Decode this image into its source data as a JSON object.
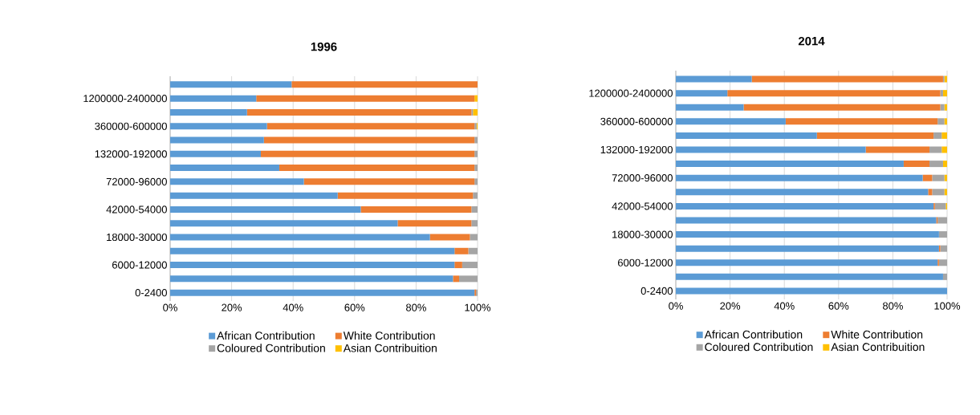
{
  "chart_data": [
    {
      "type": "bar",
      "orientation": "horizontal",
      "stacked": true,
      "title": "1996",
      "categories": [
        null,
        "1200000-2400000",
        null,
        "360000-600000",
        null,
        "132000-192000",
        null,
        "72000-96000",
        null,
        "42000-54000",
        null,
        "18000-30000",
        null,
        "6000-12000",
        null,
        "0-2400"
      ],
      "series": [
        {
          "name": "African Contribution",
          "color": "#5b9bd5",
          "values": [
            39.5,
            28,
            25,
            31.5,
            30.5,
            29.5,
            35.5,
            43.5,
            54.5,
            62,
            74,
            84.5,
            92.5,
            92.5,
            92,
            99
          ]
        },
        {
          "name": "White Contribution",
          "color": "#ed7d31",
          "values": [
            60.5,
            71,
            73,
            67.5,
            68.5,
            69.5,
            63.5,
            55.5,
            44,
            36,
            24,
            13,
            4.5,
            2.5,
            2,
            0.5
          ]
        },
        {
          "name": "Coloured Contribution",
          "color": "#a5a5a5",
          "values": [
            0,
            0,
            0.5,
            0.7,
            1,
            1,
            1,
            1,
            1.5,
            2,
            2,
            2.5,
            3,
            5,
            6,
            0.5
          ]
        },
        {
          "name": "Asian Contribuition",
          "color": "#ffc000",
          "values": [
            0,
            1,
            1.5,
            0.3,
            0,
            0,
            0,
            0,
            0,
            0,
            0,
            0,
            0,
            0,
            0,
            0
          ]
        }
      ],
      "xlim": [
        0,
        100
      ],
      "xticks": [
        {
          "value": 0,
          "label": "0%"
        },
        {
          "value": 20,
          "label": "20%"
        },
        {
          "value": 40,
          "label": "40%"
        },
        {
          "value": 60,
          "label": "60%"
        },
        {
          "value": 80,
          "label": "80%"
        },
        {
          "value": 100,
          "label": "100%"
        }
      ],
      "grid": "x",
      "legend": "bottom"
    },
    {
      "type": "bar",
      "orientation": "horizontal",
      "stacked": true,
      "title": "2014",
      "categories": [
        null,
        "1200000-2400000",
        null,
        "360000-600000",
        null,
        "132000-192000",
        null,
        "72000-96000",
        null,
        "42000-54000",
        null,
        "18000-30000",
        null,
        "6000-12000",
        null,
        "0-2400"
      ],
      "series": [
        {
          "name": "African Contribution",
          "color": "#5b9bd5",
          "values": [
            28,
            19,
            25,
            40.5,
            52,
            70,
            84,
            91,
            93,
            95,
            96,
            97,
            97,
            96.5,
            98.5,
            100
          ]
        },
        {
          "name": "White Contribution",
          "color": "#ed7d31",
          "values": [
            70.5,
            78.5,
            72.5,
            56,
            43,
            23.5,
            9.5,
            3.5,
            1.5,
            0.5,
            0.5,
            0,
            0.5,
            0.5,
            0,
            0
          ]
        },
        {
          "name": "Coloured Contribution",
          "color": "#a5a5a5",
          "values": [
            0.5,
            1,
            1.5,
            2.5,
            3,
            4.5,
            5,
            4.5,
            4.5,
            4,
            3.5,
            3,
            2.5,
            3,
            1.5,
            0
          ]
        },
        {
          "name": "Asian Contribuition",
          "color": "#ffc000",
          "values": [
            1,
            1.5,
            1,
            1,
            2,
            2,
            1.5,
            1,
            1,
            0.5,
            0,
            0,
            0,
            0,
            0,
            0
          ]
        }
      ],
      "xlim": [
        0,
        100
      ],
      "xticks": [
        {
          "value": 0,
          "label": "0%"
        },
        {
          "value": 20,
          "label": "20%"
        },
        {
          "value": 40,
          "label": "40%"
        },
        {
          "value": 60,
          "label": "60%"
        },
        {
          "value": 80,
          "label": "80%"
        },
        {
          "value": 100,
          "label": "100%"
        }
      ],
      "grid": "x",
      "legend": "bottom"
    }
  ]
}
